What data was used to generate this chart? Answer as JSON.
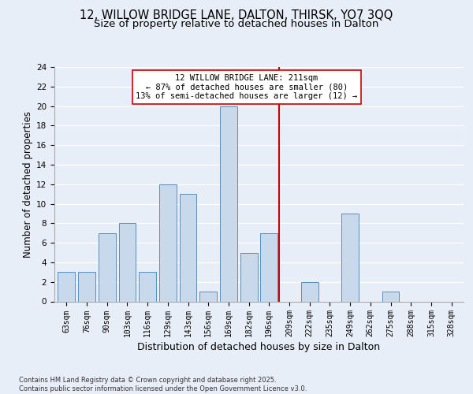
{
  "title_line1": "12, WILLOW BRIDGE LANE, DALTON, THIRSK, YO7 3QQ",
  "title_line2": "Size of property relative to detached houses in Dalton",
  "xlabel": "Distribution of detached houses by size in Dalton",
  "ylabel": "Number of detached properties",
  "footnote": "Contains HM Land Registry data © Crown copyright and database right 2025.\nContains public sector information licensed under the Open Government Licence v3.0.",
  "categories": [
    "63sqm",
    "76sqm",
    "90sqm",
    "103sqm",
    "116sqm",
    "129sqm",
    "143sqm",
    "156sqm",
    "169sqm",
    "182sqm",
    "196sqm",
    "209sqm",
    "222sqm",
    "235sqm",
    "249sqm",
    "262sqm",
    "275sqm",
    "288sqm",
    "315sqm",
    "328sqm"
  ],
  "values": [
    3,
    3,
    7,
    8,
    3,
    12,
    11,
    1,
    20,
    5,
    7,
    0,
    2,
    0,
    9,
    0,
    1,
    0,
    0,
    0
  ],
  "bar_color": "#c9d9ec",
  "bar_edge_color": "#5b8db8",
  "highlight_line_bin": 11,
  "highlight_color": "#cc0000",
  "annotation_text": "12 WILLOW BRIDGE LANE: 211sqm\n← 87% of detached houses are smaller (80)\n13% of semi-detached houses are larger (12) →",
  "ylim": [
    0,
    24
  ],
  "yticks": [
    0,
    2,
    4,
    6,
    8,
    10,
    12,
    14,
    16,
    18,
    20,
    22,
    24
  ],
  "background_color": "#e8eef7",
  "plot_background": "#e8eef7",
  "grid_color": "#ffffff",
  "title_fontsize": 10.5,
  "subtitle_fontsize": 9.5,
  "axis_label_fontsize": 8.5,
  "tick_fontsize": 7.0,
  "annot_fontsize": 7.5
}
